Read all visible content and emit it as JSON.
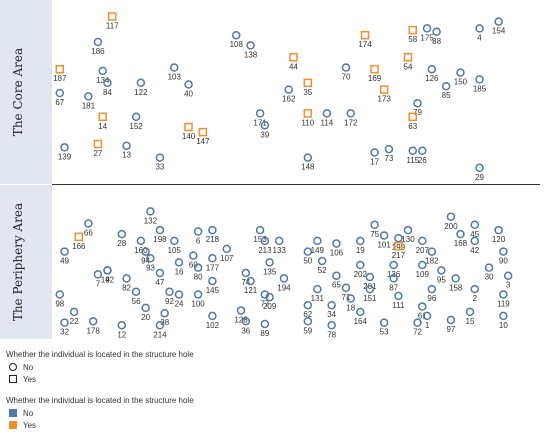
{
  "chart_data": {
    "type": "scatter",
    "panels": [
      {
        "name": "The Core Area",
        "ylim": [
          0,
          100
        ]
      },
      {
        "name": "The Periphery Area",
        "ylim": [
          0,
          100
        ]
      }
    ],
    "xlim": [
      0,
      100
    ],
    "colors": {
      "No": "#4e79a7",
      "Yes": "#f28e2b",
      "band": "#e2e6f0",
      "divider": "#333333"
    },
    "points": [
      {
        "id": "117",
        "panel": 0,
        "x": 12,
        "y": 95,
        "hole": "Yes"
      },
      {
        "id": "187",
        "panel": 0,
        "x": 1,
        "y": 64,
        "hole": "Yes"
      },
      {
        "id": "67",
        "panel": 0,
        "x": 1,
        "y": 50,
        "hole": "No"
      },
      {
        "id": "186",
        "panel": 0,
        "x": 9,
        "y": 80,
        "hole": "No"
      },
      {
        "id": "134",
        "panel": 0,
        "x": 10,
        "y": 63,
        "hole": "No"
      },
      {
        "id": "84",
        "panel": 0,
        "x": 11,
        "y": 56,
        "hole": "No"
      },
      {
        "id": "181",
        "panel": 0,
        "x": 7,
        "y": 48,
        "hole": "No"
      },
      {
        "id": "14",
        "panel": 0,
        "x": 10,
        "y": 36,
        "hole": "Yes"
      },
      {
        "id": "139",
        "panel": 0,
        "x": 2,
        "y": 18,
        "hole": "No"
      },
      {
        "id": "27",
        "panel": 0,
        "x": 9,
        "y": 20,
        "hole": "Yes"
      },
      {
        "id": "13",
        "panel": 0,
        "x": 15,
        "y": 19,
        "hole": "No"
      },
      {
        "id": "122",
        "panel": 0,
        "x": 18,
        "y": 56,
        "hole": "No"
      },
      {
        "id": "152",
        "panel": 0,
        "x": 17,
        "y": 36,
        "hole": "No"
      },
      {
        "id": "33",
        "panel": 0,
        "x": 22,
        "y": 12,
        "hole": "No"
      },
      {
        "id": "103",
        "panel": 0,
        "x": 25,
        "y": 65,
        "hole": "No"
      },
      {
        "id": "40",
        "panel": 0,
        "x": 28,
        "y": 55,
        "hole": "No"
      },
      {
        "id": "140",
        "panel": 0,
        "x": 28,
        "y": 30,
        "hole": "Yes"
      },
      {
        "id": "147",
        "panel": 0,
        "x": 31,
        "y": 27,
        "hole": "Yes"
      },
      {
        "id": "108",
        "panel": 0,
        "x": 38,
        "y": 84,
        "hole": "No"
      },
      {
        "id": "138",
        "panel": 0,
        "x": 41,
        "y": 78,
        "hole": "No"
      },
      {
        "id": "171",
        "panel": 0,
        "x": 43,
        "y": 38,
        "hole": "No"
      },
      {
        "id": "39",
        "panel": 0,
        "x": 44,
        "y": 31,
        "hole": "No"
      },
      {
        "id": "162",
        "panel": 0,
        "x": 49,
        "y": 52,
        "hole": "No"
      },
      {
        "id": "44",
        "panel": 0,
        "x": 50,
        "y": 71,
        "hole": "Yes"
      },
      {
        "id": "35",
        "panel": 0,
        "x": 53,
        "y": 56,
        "hole": "Yes"
      },
      {
        "id": "110",
        "panel": 0,
        "x": 53,
        "y": 38,
        "hole": "Yes"
      },
      {
        "id": "114",
        "panel": 0,
        "x": 57,
        "y": 38,
        "hole": "No"
      },
      {
        "id": "148",
        "panel": 0,
        "x": 53,
        "y": 12,
        "hole": "No"
      },
      {
        "id": "70",
        "panel": 0,
        "x": 61,
        "y": 65,
        "hole": "No"
      },
      {
        "id": "172",
        "panel": 0,
        "x": 62,
        "y": 38,
        "hole": "No"
      },
      {
        "id": "174",
        "panel": 0,
        "x": 65,
        "y": 84,
        "hole": "Yes"
      },
      {
        "id": "169",
        "panel": 0,
        "x": 67,
        "y": 64,
        "hole": "Yes"
      },
      {
        "id": "173",
        "panel": 0,
        "x": 69,
        "y": 52,
        "hole": "Yes"
      },
      {
        "id": "17",
        "panel": 0,
        "x": 67,
        "y": 15,
        "hole": "No"
      },
      {
        "id": "73",
        "panel": 0,
        "x": 70,
        "y": 17,
        "hole": "No"
      },
      {
        "id": "58",
        "panel": 0,
        "x": 75,
        "y": 87,
        "hole": "Yes"
      },
      {
        "id": "54",
        "panel": 0,
        "x": 74,
        "y": 71,
        "hole": "Yes"
      },
      {
        "id": "175",
        "panel": 0,
        "x": 78,
        "y": 88,
        "hole": "No"
      },
      {
        "id": "88",
        "panel": 0,
        "x": 80,
        "y": 86,
        "hole": "No"
      },
      {
        "id": "79",
        "panel": 0,
        "x": 76,
        "y": 44,
        "hole": "No"
      },
      {
        "id": "63",
        "panel": 0,
        "x": 75,
        "y": 36,
        "hole": "Yes"
      },
      {
        "id": "115",
        "panel": 0,
        "x": 75,
        "y": 16,
        "hole": "No"
      },
      {
        "id": "26",
        "panel": 0,
        "x": 77,
        "y": 16,
        "hole": "No"
      },
      {
        "id": "126",
        "panel": 0,
        "x": 79,
        "y": 64,
        "hole": "No"
      },
      {
        "id": "85",
        "panel": 0,
        "x": 82,
        "y": 54,
        "hole": "No"
      },
      {
        "id": "150",
        "panel": 0,
        "x": 85,
        "y": 62,
        "hole": "No"
      },
      {
        "id": "185",
        "panel": 0,
        "x": 89,
        "y": 58,
        "hole": "No"
      },
      {
        "id": "154",
        "panel": 0,
        "x": 93,
        "y": 92,
        "hole": "No"
      },
      {
        "id": "4",
        "panel": 0,
        "x": 89,
        "y": 88,
        "hole": "No"
      },
      {
        "id": "29",
        "panel": 0,
        "x": 89,
        "y": 6,
        "hole": "No"
      },
      {
        "id": "132",
        "panel": 1,
        "x": 20,
        "y": 90,
        "hole": "No"
      },
      {
        "id": "66",
        "panel": 1,
        "x": 7,
        "y": 81,
        "hole": "No"
      },
      {
        "id": "166",
        "panel": 1,
        "x": 5,
        "y": 71,
        "hole": "Yes"
      },
      {
        "id": "49",
        "panel": 1,
        "x": 2,
        "y": 60,
        "hole": "No"
      },
      {
        "id": "7",
        "panel": 1,
        "x": 9,
        "y": 43,
        "hole": "No"
      },
      {
        "id": "9",
        "panel": 1,
        "x": 11,
        "y": 46,
        "hole": "No"
      },
      {
        "id": "142",
        "panel": 1,
        "x": 11,
        "y": 46,
        "hole": "No"
      },
      {
        "id": "98",
        "panel": 1,
        "x": 1,
        "y": 28,
        "hole": "No"
      },
      {
        "id": "22",
        "panel": 1,
        "x": 4,
        "y": 15,
        "hole": "No"
      },
      {
        "id": "32",
        "panel": 1,
        "x": 2,
        "y": 7,
        "hole": "No"
      },
      {
        "id": "178",
        "panel": 1,
        "x": 8,
        "y": 8,
        "hole": "No"
      },
      {
        "id": "28",
        "panel": 1,
        "x": 14,
        "y": 73,
        "hole": "No"
      },
      {
        "id": "160",
        "panel": 1,
        "x": 18,
        "y": 68,
        "hole": "No"
      },
      {
        "id": "198",
        "panel": 1,
        "x": 22,
        "y": 76,
        "hole": "No"
      },
      {
        "id": "94",
        "panel": 1,
        "x": 19,
        "y": 60,
        "hole": "No"
      },
      {
        "id": "93",
        "panel": 1,
        "x": 20,
        "y": 55,
        "hole": "No"
      },
      {
        "id": "82",
        "panel": 1,
        "x": 15,
        "y": 40,
        "hole": "No"
      },
      {
        "id": "56",
        "panel": 1,
        "x": 17,
        "y": 30,
        "hole": "No"
      },
      {
        "id": "20",
        "panel": 1,
        "x": 19,
        "y": 18,
        "hole": "No"
      },
      {
        "id": "12",
        "panel": 1,
        "x": 14,
        "y": 5,
        "hole": "No"
      },
      {
        "id": "38",
        "panel": 1,
        "x": 23,
        "y": 14,
        "hole": "No"
      },
      {
        "id": "214",
        "panel": 1,
        "x": 22,
        "y": 5,
        "hole": "No"
      },
      {
        "id": "105",
        "panel": 1,
        "x": 25,
        "y": 68,
        "hole": "No"
      },
      {
        "id": "47",
        "panel": 1,
        "x": 22,
        "y": 44,
        "hole": "No"
      },
      {
        "id": "16",
        "panel": 1,
        "x": 26,
        "y": 52,
        "hole": "No"
      },
      {
        "id": "92",
        "panel": 1,
        "x": 24,
        "y": 30,
        "hole": "No"
      },
      {
        "id": "24",
        "panel": 1,
        "x": 26,
        "y": 28,
        "hole": "No"
      },
      {
        "id": "6",
        "panel": 1,
        "x": 30,
        "y": 75,
        "hole": "No"
      },
      {
        "id": "218",
        "panel": 1,
        "x": 33,
        "y": 76,
        "hole": "No"
      },
      {
        "id": "60",
        "panel": 1,
        "x": 29,
        "y": 57,
        "hole": "No"
      },
      {
        "id": "177",
        "panel": 1,
        "x": 33,
        "y": 55,
        "hole": "No"
      },
      {
        "id": "80",
        "panel": 1,
        "x": 30,
        "y": 48,
        "hole": "No"
      },
      {
        "id": "145",
        "panel": 1,
        "x": 33,
        "y": 38,
        "hole": "No"
      },
      {
        "id": "100",
        "panel": 1,
        "x": 30,
        "y": 28,
        "hole": "No"
      },
      {
        "id": "102",
        "panel": 1,
        "x": 33,
        "y": 12,
        "hole": "No"
      },
      {
        "id": "107",
        "panel": 1,
        "x": 36,
        "y": 62,
        "hole": "No"
      },
      {
        "id": "153",
        "panel": 1,
        "x": 43,
        "y": 76,
        "hole": "No"
      },
      {
        "id": "213",
        "panel": 1,
        "x": 44,
        "y": 68,
        "hole": "No"
      },
      {
        "id": "74",
        "panel": 1,
        "x": 40,
        "y": 44,
        "hole": "No"
      },
      {
        "id": "121",
        "panel": 1,
        "x": 41,
        "y": 38,
        "hole": "No"
      },
      {
        "id": "128",
        "panel": 1,
        "x": 39,
        "y": 16,
        "hole": "No"
      },
      {
        "id": "36",
        "panel": 1,
        "x": 40,
        "y": 8,
        "hole": "No"
      },
      {
        "id": "89",
        "panel": 1,
        "x": 44,
        "y": 6,
        "hole": "No"
      },
      {
        "id": "135",
        "panel": 1,
        "x": 45,
        "y": 52,
        "hole": "No"
      },
      {
        "id": "133",
        "panel": 1,
        "x": 47,
        "y": 68,
        "hole": "No"
      },
      {
        "id": "194",
        "panel": 1,
        "x": 48,
        "y": 40,
        "hole": "No"
      },
      {
        "id": "77",
        "panel": 1,
        "x": 44,
        "y": 28,
        "hole": "No"
      },
      {
        "id": "209",
        "panel": 1,
        "x": 45,
        "y": 26,
        "hole": "No"
      },
      {
        "id": "50",
        "panel": 1,
        "x": 53,
        "y": 60,
        "hole": "No"
      },
      {
        "id": "149",
        "panel": 1,
        "x": 55,
        "y": 68,
        "hole": "No"
      },
      {
        "id": "52",
        "panel": 1,
        "x": 56,
        "y": 53,
        "hole": "No"
      },
      {
        "id": "131",
        "panel": 1,
        "x": 55,
        "y": 32,
        "hole": "No"
      },
      {
        "id": "62",
        "panel": 1,
        "x": 53,
        "y": 20,
        "hole": "No"
      },
      {
        "id": "59",
        "panel": 1,
        "x": 53,
        "y": 8,
        "hole": "No"
      },
      {
        "id": "78",
        "panel": 1,
        "x": 58,
        "y": 5,
        "hole": "No"
      },
      {
        "id": "106",
        "panel": 1,
        "x": 59,
        "y": 66,
        "hole": "No"
      },
      {
        "id": "19",
        "panel": 1,
        "x": 64,
        "y": 68,
        "hole": "No"
      },
      {
        "id": "75",
        "panel": 1,
        "x": 67,
        "y": 80,
        "hole": "No"
      },
      {
        "id": "101",
        "panel": 1,
        "x": 69,
        "y": 72,
        "hole": "No"
      },
      {
        "id": "65",
        "panel": 1,
        "x": 59,
        "y": 42,
        "hole": "No"
      },
      {
        "id": "71",
        "panel": 1,
        "x": 61,
        "y": 33,
        "hole": "No"
      },
      {
        "id": "202",
        "panel": 1,
        "x": 64,
        "y": 50,
        "hole": "No"
      },
      {
        "id": "201",
        "panel": 1,
        "x": 66,
        "y": 41,
        "hole": "No"
      },
      {
        "id": "151",
        "panel": 1,
        "x": 66,
        "y": 32,
        "hole": "No"
      },
      {
        "id": "18",
        "panel": 1,
        "x": 62,
        "y": 25,
        "hole": "No"
      },
      {
        "id": "164",
        "panel": 1,
        "x": 64,
        "y": 15,
        "hole": "No"
      },
      {
        "id": "34",
        "panel": 1,
        "x": 58,
        "y": 20,
        "hole": "No"
      },
      {
        "id": "53",
        "panel": 1,
        "x": 69,
        "y": 7,
        "hole": "No"
      },
      {
        "id": "130",
        "panel": 1,
        "x": 74,
        "y": 76,
        "hole": "No"
      },
      {
        "id": "199",
        "panel": 1,
        "x": 72,
        "y": 70,
        "hole": "No"
      },
      {
        "id": "217",
        "panel": 1,
        "x": 72,
        "y": 64,
        "hole": "Yes"
      },
      {
        "id": "136",
        "panel": 1,
        "x": 71,
        "y": 50,
        "hole": "No"
      },
      {
        "id": "87",
        "panel": 1,
        "x": 71,
        "y": 40,
        "hole": "No"
      },
      {
        "id": "111",
        "panel": 1,
        "x": 72,
        "y": 27,
        "hole": "No"
      },
      {
        "id": "72",
        "panel": 1,
        "x": 76,
        "y": 7,
        "hole": "No"
      },
      {
        "id": "207",
        "panel": 1,
        "x": 77,
        "y": 68,
        "hole": "No"
      },
      {
        "id": "182",
        "panel": 1,
        "x": 79,
        "y": 60,
        "hole": "No"
      },
      {
        "id": "109",
        "panel": 1,
        "x": 77,
        "y": 50,
        "hole": "No"
      },
      {
        "id": "96",
        "panel": 1,
        "x": 79,
        "y": 32,
        "hole": "No"
      },
      {
        "id": "61",
        "panel": 1,
        "x": 77,
        "y": 19,
        "hole": "No"
      },
      {
        "id": "1",
        "panel": 1,
        "x": 78,
        "y": 12,
        "hole": "No"
      },
      {
        "id": "97",
        "panel": 1,
        "x": 83,
        "y": 9,
        "hole": "No"
      },
      {
        "id": "200",
        "panel": 1,
        "x": 83,
        "y": 86,
        "hole": "No"
      },
      {
        "id": "168",
        "panel": 1,
        "x": 85,
        "y": 73,
        "hole": "No"
      },
      {
        "id": "95",
        "panel": 1,
        "x": 81,
        "y": 46,
        "hole": "No"
      },
      {
        "id": "158",
        "panel": 1,
        "x": 84,
        "y": 40,
        "hole": "No"
      },
      {
        "id": "45",
        "panel": 1,
        "x": 88,
        "y": 80,
        "hole": "No"
      },
      {
        "id": "42",
        "panel": 1,
        "x": 88,
        "y": 68,
        "hole": "No"
      },
      {
        "id": "120",
        "panel": 1,
        "x": 93,
        "y": 76,
        "hole": "No"
      },
      {
        "id": "90",
        "panel": 1,
        "x": 94,
        "y": 60,
        "hole": "No"
      },
      {
        "id": "30",
        "panel": 1,
        "x": 91,
        "y": 48,
        "hole": "No"
      },
      {
        "id": "3",
        "panel": 1,
        "x": 95,
        "y": 42,
        "hole": "No"
      },
      {
        "id": "2",
        "panel": 1,
        "x": 88,
        "y": 32,
        "hole": "No"
      },
      {
        "id": "119",
        "panel": 1,
        "x": 94,
        "y": 28,
        "hole": "No"
      },
      {
        "id": "15",
        "panel": 1,
        "x": 87,
        "y": 15,
        "hole": "No"
      },
      {
        "id": "10",
        "panel": 1,
        "x": 94,
        "y": 12,
        "hole": "No"
      }
    ],
    "legend": [
      {
        "title": "Whether the individual is located in the structure hole",
        "kind": "shape",
        "items": [
          {
            "label": "No",
            "shape": "circle"
          },
          {
            "label": "Yes",
            "shape": "square"
          }
        ]
      },
      {
        "title": "Whether the individual is located in the structure hole",
        "kind": "color",
        "items": [
          {
            "label": "No",
            "color": "#4e79a7"
          },
          {
            "label": "Yes",
            "color": "#f28e2b"
          }
        ]
      }
    ]
  }
}
